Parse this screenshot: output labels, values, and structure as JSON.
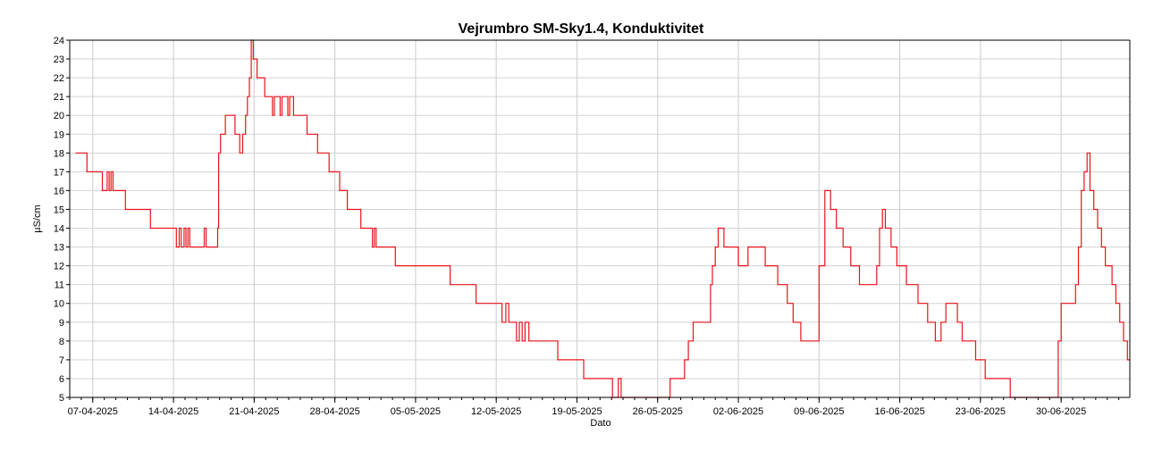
{
  "chart_data": {
    "type": "line",
    "title": "Vejrumbro SM-Sky1.4, Konduktivitet",
    "xlabel": "Dato",
    "ylabel": "µS/cm",
    "ylim": [
      5,
      24
    ],
    "xlim": [
      "2025-04-05",
      "2025-07-05"
    ],
    "x_ticks": [
      "07-04-2025",
      "14-04-2025",
      "21-04-2025",
      "28-04-2025",
      "05-05-2025",
      "12-05-2025",
      "19-05-2025",
      "26-05-2025",
      "02-06-2025",
      "09-06-2025",
      "16-06-2025",
      "23-06-2025",
      "30-06-2025"
    ],
    "y_ticks": [
      5,
      6,
      7,
      8,
      9,
      10,
      11,
      12,
      13,
      14,
      15,
      16,
      17,
      18,
      19,
      20,
      21,
      22,
      23,
      24
    ],
    "grid": true,
    "series": [
      {
        "color": "#e8141b",
        "points": [
          [
            "2025-04-05T12:00",
            18
          ],
          [
            "2025-04-06T12:00",
            17
          ],
          [
            "2025-04-07T20:00",
            16
          ],
          [
            "2025-04-08T06:00",
            17
          ],
          [
            "2025-04-08T10:00",
            16
          ],
          [
            "2025-04-08T14:00",
            17
          ],
          [
            "2025-04-08T18:00",
            16
          ],
          [
            "2025-04-09T20:00",
            15
          ],
          [
            "2025-04-12T00:00",
            14
          ],
          [
            "2025-04-14T06:00",
            13
          ],
          [
            "2025-04-14T12:00",
            14
          ],
          [
            "2025-04-14T16:00",
            13
          ],
          [
            "2025-04-14T22:00",
            14
          ],
          [
            "2025-04-15T02:00",
            13
          ],
          [
            "2025-04-15T06:00",
            14
          ],
          [
            "2025-04-15T10:00",
            13
          ],
          [
            "2025-04-16T16:00",
            14
          ],
          [
            "2025-04-16T20:00",
            13
          ],
          [
            "2025-04-17T20:00",
            14
          ],
          [
            "2025-04-17T22:00",
            18
          ],
          [
            "2025-04-18T02:00",
            19
          ],
          [
            "2025-04-18T12:00",
            20
          ],
          [
            "2025-04-19T08:00",
            19
          ],
          [
            "2025-04-19T18:00",
            18
          ],
          [
            "2025-04-20T00:00",
            19
          ],
          [
            "2025-04-20T06:00",
            20
          ],
          [
            "2025-04-20T10:00",
            21
          ],
          [
            "2025-04-20T14:00",
            22
          ],
          [
            "2025-04-20T18:00",
            24
          ],
          [
            "2025-04-20T22:00",
            23
          ],
          [
            "2025-04-21T06:00",
            22
          ],
          [
            "2025-04-21T22:00",
            21
          ],
          [
            "2025-04-22T14:00",
            20
          ],
          [
            "2025-04-22T18:00",
            21
          ],
          [
            "2025-04-23T06:00",
            20
          ],
          [
            "2025-04-23T10:00",
            21
          ],
          [
            "2025-04-23T22:00",
            20
          ],
          [
            "2025-04-24T02:00",
            21
          ],
          [
            "2025-04-24T10:00",
            20
          ],
          [
            "2025-04-25T14:00",
            19
          ],
          [
            "2025-04-26T12:00",
            18
          ],
          [
            "2025-04-27T12:00",
            17
          ],
          [
            "2025-04-28T10:00",
            16
          ],
          [
            "2025-04-29T02:00",
            15
          ],
          [
            "2025-04-30T06:00",
            14
          ],
          [
            "2025-05-01T06:00",
            13
          ],
          [
            "2025-05-01T10:00",
            14
          ],
          [
            "2025-05-01T14:00",
            13
          ],
          [
            "2025-05-03T06:00",
            12
          ],
          [
            "2025-05-08T00:00",
            11
          ],
          [
            "2025-05-10T06:00",
            10
          ],
          [
            "2025-05-12T12:00",
            9
          ],
          [
            "2025-05-12T20:00",
            10
          ],
          [
            "2025-05-13T02:00",
            9
          ],
          [
            "2025-05-13T18:00",
            8
          ],
          [
            "2025-05-14T00:00",
            9
          ],
          [
            "2025-05-14T06:00",
            8
          ],
          [
            "2025-05-14T12:00",
            9
          ],
          [
            "2025-05-14T20:00",
            8
          ],
          [
            "2025-05-17T08:00",
            7
          ],
          [
            "2025-05-19T14:00",
            6
          ],
          [
            "2025-05-22T02:00",
            5
          ],
          [
            "2025-05-22T14:00",
            6
          ],
          [
            "2025-05-22T20:00",
            5
          ],
          [
            "2025-05-27T02:00",
            6
          ],
          [
            "2025-05-28T08:00",
            7
          ],
          [
            "2025-05-28T16:00",
            8
          ],
          [
            "2025-05-29T02:00",
            9
          ],
          [
            "2025-05-30T14:00",
            11
          ],
          [
            "2025-05-30T18:00",
            12
          ],
          [
            "2025-05-31T00:00",
            13
          ],
          [
            "2025-05-31T06:00",
            14
          ],
          [
            "2025-05-31T18:00",
            13
          ],
          [
            "2025-06-02T00:00",
            12
          ],
          [
            "2025-06-02T20:00",
            13
          ],
          [
            "2025-06-04T08:00",
            12
          ],
          [
            "2025-06-05T10:00",
            11
          ],
          [
            "2025-06-06T06:00",
            10
          ],
          [
            "2025-06-06T18:00",
            9
          ],
          [
            "2025-06-07T10:00",
            8
          ],
          [
            "2025-06-09T00:00",
            12
          ],
          [
            "2025-06-09T12:00",
            16
          ],
          [
            "2025-06-10T00:00",
            15
          ],
          [
            "2025-06-10T12:00",
            14
          ],
          [
            "2025-06-11T02:00",
            13
          ],
          [
            "2025-06-11T18:00",
            12
          ],
          [
            "2025-06-12T12:00",
            11
          ],
          [
            "2025-06-14T00:00",
            12
          ],
          [
            "2025-06-14T06:00",
            14
          ],
          [
            "2025-06-14T12:00",
            15
          ],
          [
            "2025-06-14T18:00",
            14
          ],
          [
            "2025-06-15T06:00",
            13
          ],
          [
            "2025-06-15T18:00",
            12
          ],
          [
            "2025-06-16T14:00",
            11
          ],
          [
            "2025-06-17T14:00",
            10
          ],
          [
            "2025-06-18T10:00",
            9
          ],
          [
            "2025-06-19T02:00",
            8
          ],
          [
            "2025-06-19T14:00",
            9
          ],
          [
            "2025-06-20T00:00",
            10
          ],
          [
            "2025-06-21T00:00",
            9
          ],
          [
            "2025-06-21T10:00",
            8
          ],
          [
            "2025-06-22T14:00",
            7
          ],
          [
            "2025-06-23T10:00",
            6
          ],
          [
            "2025-06-25T14:00",
            5
          ],
          [
            "2025-06-29T18:00",
            8
          ],
          [
            "2025-06-30T00:00",
            10
          ],
          [
            "2025-07-01T06:00",
            11
          ],
          [
            "2025-07-01T12:00",
            13
          ],
          [
            "2025-07-01T18:00",
            16
          ],
          [
            "2025-07-02T00:00",
            17
          ],
          [
            "2025-07-02T06:00",
            18
          ],
          [
            "2025-07-02T12:00",
            16
          ],
          [
            "2025-07-02T20:00",
            15
          ],
          [
            "2025-07-03T04:00",
            14
          ],
          [
            "2025-07-03T12:00",
            13
          ],
          [
            "2025-07-03T20:00",
            12
          ],
          [
            "2025-07-04T10:00",
            11
          ],
          [
            "2025-07-04T18:00",
            10
          ],
          [
            "2025-07-05T02:00",
            9
          ],
          [
            "2025-07-05T10:00",
            8
          ],
          [
            "2025-07-05T18:00",
            7
          ],
          [
            "2025-07-06T00:00",
            7
          ]
        ]
      }
    ]
  }
}
